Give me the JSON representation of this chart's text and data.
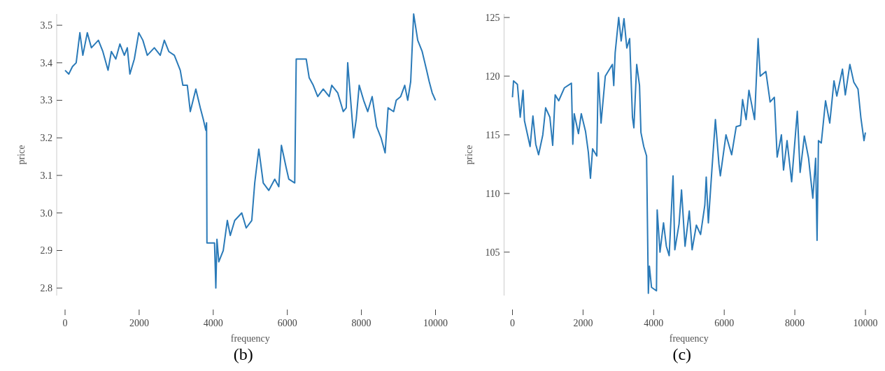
{
  "chart_data": [
    {
      "type": "line",
      "xlabel": "frequency",
      "ylabel": "price",
      "annotations": [
        "(b)"
      ],
      "xlim": [
        0,
        10000
      ],
      "xticks": [
        0,
        2000,
        4000,
        6000,
        8000,
        10000
      ],
      "ylim": [
        2.78,
        3.53
      ],
      "yticks": [
        2.8,
        2.9,
        {
          "value": 3,
          "label": "3.0"
        },
        3.1,
        3.2,
        3.3,
        3.4,
        3.5
      ],
      "series": [
        {
          "color": "#2a7ab8",
          "x": [
            0,
            100,
            200,
            300,
            400,
            480,
            600,
            710,
            900,
            1020,
            1160,
            1250,
            1370,
            1480,
            1600,
            1680,
            1750,
            1870,
            1990,
            2100,
            2220,
            2410,
            2570,
            2680,
            2800,
            2950,
            3110,
            3180,
            3300,
            3380,
            3530,
            3650,
            3730,
            3800,
            3820,
            3830,
            4035,
            4070,
            4100,
            4150,
            4270,
            4380,
            4460,
            4580,
            4770,
            4890,
            5040,
            5120,
            5230,
            5350,
            5500,
            5660,
            5770,
            5840,
            5970,
            6040,
            6200,
            6240,
            6510,
            6590,
            6700,
            6820,
            6970,
            7130,
            7200,
            7360,
            7510,
            7590,
            7630,
            7710,
            7790,
            7860,
            7940,
            8060,
            8170,
            8290,
            8410,
            8530,
            8640,
            8720,
            8870,
            8940,
            9060,
            9170,
            9250,
            9330,
            9410,
            9520,
            9640,
            9760,
            9830,
            9910,
            10000
          ],
          "values": [
            3.38,
            3.37,
            3.39,
            3.4,
            3.48,
            3.42,
            3.48,
            3.44,
            3.46,
            3.43,
            3.38,
            3.43,
            3.41,
            3.45,
            3.42,
            3.44,
            3.37,
            3.41,
            3.48,
            3.46,
            3.42,
            3.44,
            3.42,
            3.46,
            3.43,
            3.42,
            3.38,
            3.34,
            3.34,
            3.27,
            3.33,
            3.28,
            3.25,
            3.22,
            3.24,
            2.92,
            2.92,
            2.8,
            2.93,
            2.87,
            2.9,
            2.98,
            2.94,
            2.98,
            3.0,
            2.96,
            2.98,
            3.08,
            3.17,
            3.08,
            3.06,
            3.09,
            3.07,
            3.18,
            3.12,
            3.09,
            3.08,
            3.41,
            3.41,
            3.36,
            3.34,
            3.31,
            3.33,
            3.31,
            3.34,
            3.32,
            3.27,
            3.28,
            3.4,
            3.3,
            3.2,
            3.25,
            3.34,
            3.3,
            3.27,
            3.31,
            3.23,
            3.2,
            3.16,
            3.28,
            3.27,
            3.3,
            3.31,
            3.34,
            3.3,
            3.35,
            3.53,
            3.46,
            3.43,
            3.38,
            3.35,
            3.32,
            3.3
          ]
        }
      ]
    },
    {
      "type": "line",
      "xlabel": "frequency",
      "ylabel": "price",
      "annotations": [
        "(c)"
      ],
      "xlim": [
        0,
        10000
      ],
      "xticks": [
        0,
        2000,
        4000,
        6000,
        8000,
        10000
      ],
      "ylim": [
        101.3,
        125.3
      ],
      "yticks": [
        105,
        110,
        115,
        120,
        125
      ],
      "series": [
        {
          "color": "#2a7ab8",
          "x": [
            0,
            30,
            140,
            220,
            300,
            340,
            500,
            580,
            660,
            740,
            860,
            940,
            1060,
            1140,
            1210,
            1310,
            1470,
            1670,
            1710,
            1750,
            1870,
            1950,
            2070,
            2150,
            2210,
            2270,
            2390,
            2430,
            2510,
            2630,
            2750,
            2830,
            2870,
            2910,
            3010,
            3080,
            3160,
            3240,
            3320,
            3400,
            3440,
            3520,
            3600,
            3640,
            3720,
            3800,
            3850,
            3880,
            3940,
            4080,
            4100,
            4180,
            4280,
            4360,
            4440,
            4550,
            4600,
            4720,
            4790,
            4890,
            5010,
            5090,
            5210,
            5330,
            5450,
            5490,
            5550,
            5650,
            5750,
            5850,
            5890,
            6050,
            6210,
            6340,
            6460,
            6520,
            6620,
            6700,
            6860,
            6960,
            7020,
            7180,
            7300,
            7420,
            7500,
            7620,
            7680,
            7780,
            7910,
            8070,
            8150,
            8270,
            8390,
            8510,
            8590,
            8630,
            8670,
            8750,
            8870,
            8990,
            9110,
            9190,
            9350,
            9430,
            9560,
            9670,
            9790,
            9870,
            9960,
            10000
          ],
          "values": [
            118.2,
            119.6,
            119.3,
            116.5,
            118.8,
            116.2,
            114.0,
            116.6,
            114.2,
            113.3,
            115.0,
            117.3,
            116.5,
            114.1,
            118.4,
            117.9,
            119.0,
            119.4,
            114.2,
            116.8,
            115.1,
            116.8,
            115.3,
            113.5,
            111.3,
            113.8,
            113.2,
            120.3,
            116.0,
            120.0,
            120.6,
            121.0,
            119.2,
            122.0,
            125.0,
            123.0,
            124.9,
            122.4,
            123.2,
            116.5,
            115.6,
            121.0,
            119.2,
            115.2,
            114.0,
            113.2,
            101.5,
            103.8,
            102.0,
            101.7,
            108.6,
            105.0,
            107.5,
            105.5,
            104.7,
            111.5,
            105.2,
            107.4,
            110.3,
            105.5,
            108.5,
            105.2,
            107.3,
            106.5,
            109.0,
            111.4,
            107.5,
            112.0,
            116.3,
            112.5,
            111.5,
            115.0,
            113.3,
            115.7,
            115.8,
            118.0,
            116.3,
            118.8,
            116.3,
            123.2,
            120.0,
            120.4,
            117.8,
            118.2,
            113.1,
            115.0,
            112.0,
            114.5,
            111.0,
            117.0,
            111.8,
            114.9,
            113.0,
            109.6,
            113.0,
            106.0,
            114.5,
            114.3,
            117.9,
            116.0,
            119.6,
            118.3,
            120.6,
            118.4,
            121.0,
            119.5,
            118.9,
            116.5,
            114.5,
            115.2
          ]
        }
      ]
    }
  ]
}
